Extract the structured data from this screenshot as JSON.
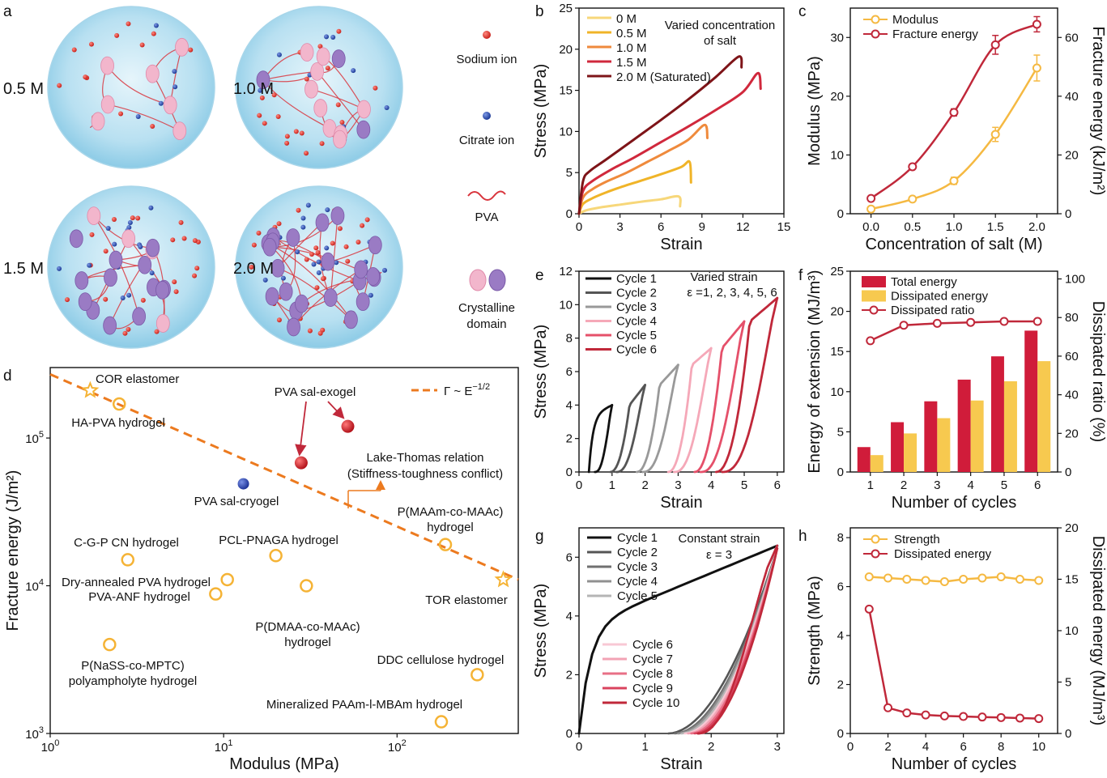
{
  "panel_a": {
    "letter": "a",
    "states": [
      "0.5 M",
      "1.0 M",
      "1.5 M",
      "2.0 M"
    ],
    "legend": {
      "sodium": "Sodium ion",
      "citrate": "Citrate ion",
      "pva": "PVA",
      "crystal_line1": "Crystalline",
      "crystal_line2": "domain"
    },
    "colors": {
      "sodium": "#e0322b",
      "citrate": "#2c52b8",
      "pva": "#d9363e",
      "crystal_pink": "#f2b6cc",
      "crystal_purple": "#9a7bc4",
      "gel": "#bfe3f2"
    }
  },
  "chart_data": [
    {
      "panel": "b",
      "type": "line",
      "xlabel": "Strain",
      "ylabel": "Stress (MPa)",
      "xlim": [
        0,
        15
      ],
      "ylim": [
        0,
        25
      ],
      "xticks": [
        0,
        3,
        6,
        9,
        12,
        15
      ],
      "yticks": [
        0,
        5,
        10,
        15,
        20,
        25
      ],
      "annotation": [
        "Varied concentration",
        "of salt"
      ],
      "series": [
        {
          "name": "0 M",
          "color": "#f7d77a",
          "x": [
            0,
            0.5,
            1.5,
            3,
            4.5,
            6,
            7.3,
            7.4
          ],
          "y": [
            0,
            0.4,
            0.75,
            1.1,
            1.45,
            1.75,
            2.1,
            0.9
          ]
        },
        {
          "name": "0.5 M",
          "color": "#f0b428",
          "x": [
            0,
            0.3,
            1,
            2,
            3,
            4.5,
            6,
            7.5,
            8.1,
            8.2
          ],
          "y": [
            0,
            1.2,
            1.9,
            2.6,
            3.2,
            4,
            4.8,
            5.7,
            6.3,
            3.8
          ]
        },
        {
          "name": "1.0 M",
          "color": "#ef8a3c",
          "x": [
            0,
            0.3,
            1,
            2,
            3.5,
            5,
            6.5,
            8,
            9.2,
            9.4
          ],
          "y": [
            0,
            2,
            3,
            3.9,
            5,
            6.3,
            7.6,
            9,
            10.8,
            9.2
          ]
        },
        {
          "name": "1.5 M",
          "color": "#d0283c",
          "x": [
            0,
            0.3,
            1,
            2.5,
            4,
            6,
            8,
            10,
            12,
            13.1,
            13.3
          ],
          "y": [
            0,
            2.8,
            4,
            5.5,
            6.8,
            8.7,
            10.6,
            12.6,
            14.8,
            17.1,
            15.2
          ]
        },
        {
          "name": "2.0 M (Saturated)",
          "color": "#7e1418",
          "x": [
            0,
            0.3,
            0.8,
            2,
            4,
            6,
            8,
            10,
            11.7,
            11.9
          ],
          "y": [
            0,
            4,
            5.2,
            6.6,
            9,
            11.4,
            13.9,
            16.6,
            19.1,
            17.8
          ]
        }
      ]
    },
    {
      "panel": "c",
      "type": "line",
      "xlabel": "Concentration of salt (M)",
      "ylabel": "Modulus (MPa)",
      "y2label": "Fracture energy (kJ/m²)",
      "xlim": [
        -0.25,
        2.25
      ],
      "ylim": [
        0,
        35
      ],
      "y2lim": [
        0,
        70
      ],
      "xticks": [
        0.0,
        0.5,
        1.0,
        1.5,
        2.0
      ],
      "yticks": [
        0,
        10,
        20,
        30
      ],
      "y2ticks": [
        0,
        20,
        40,
        60
      ],
      "series": [
        {
          "name": "Modulus",
          "axis": "left",
          "color": "#f5b942",
          "x": [
            0,
            0.5,
            1.0,
            1.5,
            2.0
          ],
          "y": [
            0.8,
            2.5,
            5.6,
            13.5,
            24.8
          ],
          "err": [
            0.2,
            0.4,
            0.6,
            1.2,
            2.2
          ]
        },
        {
          "name": "Fracture energy",
          "axis": "right",
          "color": "#c0283a",
          "x": [
            0,
            0.5,
            1.0,
            1.5,
            2.0
          ],
          "y": [
            5.2,
            16,
            34.5,
            57.5,
            64.5
          ],
          "err": [
            0.5,
            0.8,
            1.2,
            3.2,
            2.6
          ]
        }
      ]
    },
    {
      "panel": "d",
      "type": "scatter",
      "xlabel": "Modulus (MPa)",
      "ylabel": "Fracture energy (J/m²)",
      "xscale": "log",
      "yscale": "log",
      "xlim": [
        1,
        500
      ],
      "ylim": [
        1000,
        300000
      ],
      "xticks": [
        1,
        10,
        100
      ],
      "yticks": [
        1000,
        10000,
        100000
      ],
      "line": {
        "label": "Γ ~ E⁻¹ᐟ²",
        "label_ascii": "Γ ~ E",
        "exponent": "−1/2",
        "color": "#ec7a1f",
        "x": [
          1,
          500
        ],
        "y": [
          270000,
          11000
        ]
      },
      "annotations": {
        "lake1": "Lake-Thomas relation",
        "lake2": "(Stiffness-toughness conflict)",
        "exogel": "PVA sal-exogel",
        "cryogel": "PVA sal-cryogel"
      },
      "points": [
        {
          "label": "COR elastomer",
          "x": 1.7,
          "y": 210000,
          "marker": "star"
        },
        {
          "label": "HA-PVA hydrogel",
          "x": 2.5,
          "y": 170000,
          "marker": "ring"
        },
        {
          "label": "PVA sal-exogel",
          "x": 52,
          "y": 120000,
          "marker": "red"
        },
        {
          "label": "PVA sal-exogel",
          "x": 28,
          "y": 68000,
          "marker": "red"
        },
        {
          "label": "PVA sal-cryogel",
          "x": 13,
          "y": 49000,
          "marker": "blue"
        },
        {
          "label": "C-G-P CN hydrogel",
          "x": 2.8,
          "y": 15000,
          "marker": "ring"
        },
        {
          "label": "PCL-PNAGA hydrogel",
          "x": 20,
          "y": 16000,
          "marker": "ring"
        },
        {
          "label": "P(MAAm-co-MAAc) hydrogel",
          "x": 190,
          "y": 19000,
          "marker": "ring"
        },
        {
          "label": "Dry-annealed PVA hydrogel",
          "x": 10.5,
          "y": 11000,
          "marker": "ring"
        },
        {
          "label": "PVA-ANF hydrogel",
          "x": 9,
          "y": 8800,
          "marker": "ring"
        },
        {
          "label": "P(DMAA-co-MAAc) hydrogel",
          "x": 30,
          "y": 10000,
          "marker": "ring"
        },
        {
          "label": "TOR elastomer",
          "x": 410,
          "y": 11000,
          "marker": "star"
        },
        {
          "label": "P(NaSS-co-MPTC) polyampholyte hydrogel",
          "x": 2.2,
          "y": 4000,
          "marker": "ring"
        },
        {
          "label": "DDC cellulose hydrogel",
          "x": 290,
          "y": 2500,
          "marker": "ring"
        },
        {
          "label": "Mineralized PAAm-l-MBAm hydrogel",
          "x": 180,
          "y": 1200,
          "marker": "ring"
        }
      ]
    },
    {
      "panel": "e",
      "type": "line",
      "xlabel": "Strain",
      "ylabel": "Stress (MPa)",
      "xlim": [
        0,
        6.2
      ],
      "ylim": [
        0,
        12
      ],
      "xticks": [
        0,
        1,
        2,
        3,
        4,
        5,
        6
      ],
      "yticks": [
        0,
        2,
        4,
        6,
        8,
        10,
        12
      ],
      "annotation": [
        "Varied strain",
        "ε =1, 2, 3, 4, 5, 6"
      ],
      "series": [
        {
          "name": "Cycle 1",
          "color": "#111111",
          "max_strain": 1,
          "max_stress": 4.0,
          "onset": 0.3
        },
        {
          "name": "Cycle 2",
          "color": "#555555",
          "max_strain": 2,
          "max_stress": 5.2,
          "onset": 0.95
        },
        {
          "name": "Cycle 3",
          "color": "#999999",
          "max_strain": 3,
          "max_stress": 6.4,
          "onset": 1.75
        },
        {
          "name": "Cycle 4",
          "color": "#f5a8b8",
          "max_strain": 4,
          "max_stress": 7.4,
          "onset": 2.7
        },
        {
          "name": "Cycle 5",
          "color": "#e5506a",
          "max_strain": 5,
          "max_stress": 9.0,
          "onset": 3.5
        },
        {
          "name": "Cycle 6",
          "color": "#c0283a",
          "max_strain": 6,
          "max_stress": 10.4,
          "onset": 4.15
        }
      ]
    },
    {
      "panel": "f",
      "type": "bar",
      "xlabel": "Number of cycles",
      "ylabel": "Energy of extension (MJ/m³)",
      "y2label": "Dissipated ratio (%)",
      "categories": [
        "1",
        "2",
        "3",
        "4",
        "5",
        "6"
      ],
      "ylim": [
        0,
        25
      ],
      "y2lim": [
        0,
        104
      ],
      "yticks": [
        0,
        5,
        10,
        15,
        20,
        25
      ],
      "y2ticks": [
        0,
        20,
        40,
        60,
        80,
        100
      ],
      "series": [
        {
          "name": "Total energy",
          "color": "#d01c3a",
          "values": [
            3.1,
            6.2,
            8.8,
            11.5,
            14.4,
            17.6
          ]
        },
        {
          "name": "Dissipated energy",
          "color": "#f7c94f",
          "values": [
            2.1,
            4.8,
            6.7,
            8.9,
            11.3,
            13.8
          ]
        },
        {
          "name": "Dissipated ratio",
          "axis": "right",
          "color": "#c0283a",
          "values": [
            68,
            76,
            77,
            77.5,
            78,
            78
          ]
        }
      ]
    },
    {
      "panel": "g",
      "type": "line",
      "xlabel": "Strain",
      "ylabel": "Stress (MPa)",
      "xlim": [
        0,
        3.1
      ],
      "ylim": [
        0,
        7
      ],
      "xticks": [
        0,
        1,
        2,
        3
      ],
      "yticks": [
        0,
        2,
        4,
        6
      ],
      "annotation": [
        "Constant strain",
        "ε = 3"
      ],
      "series": [
        {
          "name": "Cycle 1",
          "color": "#111111",
          "onset": 0.0
        },
        {
          "name": "Cycle 2",
          "color": "#555555",
          "onset": 1.35
        },
        {
          "name": "Cycle 3",
          "color": "#707070",
          "onset": 1.45
        },
        {
          "name": "Cycle 4",
          "color": "#909090",
          "onset": 1.5
        },
        {
          "name": "Cycle 5",
          "color": "#b5b5b5",
          "onset": 1.55
        },
        {
          "name": "Cycle 6",
          "color": "#f8c8d4",
          "onset": 1.6
        },
        {
          "name": "Cycle 7",
          "color": "#f2a3b4",
          "onset": 1.65
        },
        {
          "name": "Cycle 8",
          "color": "#e86f86",
          "onset": 1.7
        },
        {
          "name": "Cycle 9",
          "color": "#d9435e",
          "onset": 1.75
        },
        {
          "name": "Cycle 10",
          "color": "#c0283a",
          "onset": 1.8
        }
      ]
    },
    {
      "panel": "h",
      "type": "line",
      "xlabel": "Number of cycles",
      "ylabel": "Strength (MPa)",
      "y2label": "Dissipated energy (MJ/m³)",
      "xlim": [
        0,
        11
      ],
      "ylim": [
        0,
        8.4
      ],
      "y2lim": [
        0,
        20
      ],
      "xticks": [
        0,
        2,
        4,
        6,
        8,
        10
      ],
      "yticks": [
        0,
        2,
        4,
        6,
        8
      ],
      "y2ticks": [
        0,
        5,
        10,
        15,
        20
      ],
      "series": [
        {
          "name": "Strength",
          "axis": "left",
          "color": "#f5b942",
          "x": [
            1,
            2,
            3,
            4,
            5,
            6,
            7,
            8,
            9,
            10
          ],
          "y": [
            6.4,
            6.35,
            6.3,
            6.25,
            6.2,
            6.3,
            6.35,
            6.4,
            6.3,
            6.25
          ]
        },
        {
          "name": "Dissipated energy",
          "axis": "right",
          "color": "#c0283a",
          "x": [
            1,
            2,
            3,
            4,
            5,
            6,
            7,
            8,
            9,
            10
          ],
          "y": [
            12.1,
            2.5,
            2.0,
            1.8,
            1.7,
            1.65,
            1.6,
            1.55,
            1.5,
            1.45
          ]
        }
      ]
    }
  ]
}
